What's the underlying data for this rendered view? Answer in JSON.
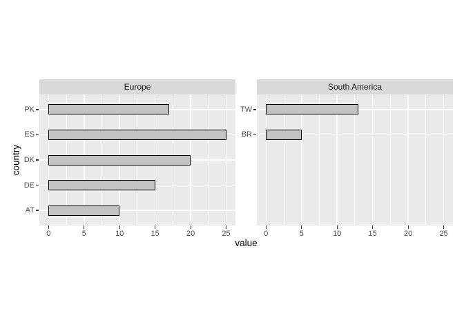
{
  "chart_data": {
    "type": "bar",
    "orientation": "horizontal",
    "title": "",
    "xlabel": "value",
    "ylabel": "country",
    "x_ticks": [
      0,
      5,
      10,
      15,
      20,
      25
    ],
    "x_minor_ticks": [
      2.5,
      7.5,
      12.5,
      17.5,
      22.5
    ],
    "xlim": [
      -1.3,
      26.3
    ],
    "slots_per_panel": 5,
    "grid": "on",
    "legend": "none",
    "facets": [
      {
        "label": "Europe",
        "categories": [
          "PK",
          "ES",
          "DK",
          "DE",
          "AT"
        ],
        "values": [
          17,
          25,
          20,
          15,
          10
        ]
      },
      {
        "label": "South America",
        "categories": [
          "TW",
          "BR"
        ],
        "values": [
          13,
          5
        ]
      }
    ],
    "colors": {
      "panel_bg": "#EBEBEB",
      "strip_bg": "#D9D9D9",
      "bar_fill": "#C3C3C3",
      "bar_stroke": "#000000",
      "grid": "#FFFFFF",
      "tick_label": "#4D4D4D",
      "tick_mark": "#333333",
      "strip_text": "#1A1A1A",
      "axis_title": "#000000"
    }
  }
}
